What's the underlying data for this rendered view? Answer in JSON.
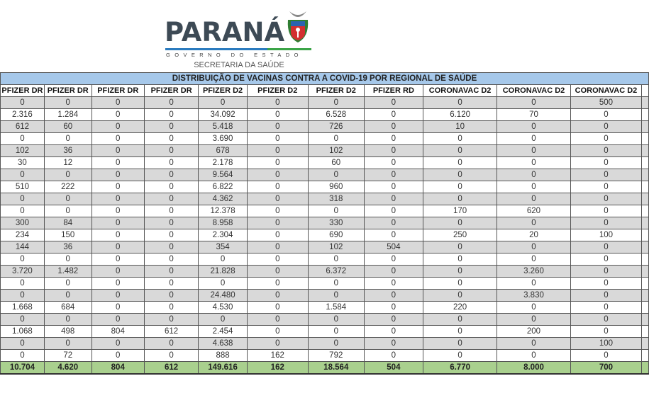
{
  "logo": {
    "name": "PARANÁ",
    "subtitle": "GOVERNO DO ESTADO",
    "department": "SECRETARIA DA SAÚDE"
  },
  "table": {
    "title": "DISTRIBUIÇÃO DE VACINAS CONTRA A COVID-19 POR REGIONAL DE SAÚDE",
    "headers": [
      "PFIZER DR",
      "PFIZER DR",
      "PFIZER DR",
      "PFIZER DR",
      "PFIZER D2",
      "PFIZER D2",
      "PFIZER D2",
      "PFIZER RD",
      "CORONAVAC D2",
      "CORONAVAC D2",
      "CORONAVAC D2"
    ],
    "rows": [
      [
        "0",
        "0",
        "0",
        "0",
        "0",
        "0",
        "0",
        "0",
        "0",
        "0",
        "500"
      ],
      [
        "2.316",
        "1.284",
        "0",
        "0",
        "34.092",
        "0",
        "6.528",
        "0",
        "6.120",
        "70",
        "0"
      ],
      [
        "612",
        "60",
        "0",
        "0",
        "5.418",
        "0",
        "726",
        "0",
        "10",
        "0",
        "0"
      ],
      [
        "0",
        "0",
        "0",
        "0",
        "3.690",
        "0",
        "0",
        "0",
        "0",
        "0",
        "0"
      ],
      [
        "102",
        "36",
        "0",
        "0",
        "678",
        "0",
        "102",
        "0",
        "0",
        "0",
        "0"
      ],
      [
        "30",
        "12",
        "0",
        "0",
        "2.178",
        "0",
        "60",
        "0",
        "0",
        "0",
        "0"
      ],
      [
        "0",
        "0",
        "0",
        "0",
        "9.564",
        "0",
        "0",
        "0",
        "0",
        "0",
        "0"
      ],
      [
        "510",
        "222",
        "0",
        "0",
        "6.822",
        "0",
        "960",
        "0",
        "0",
        "0",
        "0"
      ],
      [
        "0",
        "0",
        "0",
        "0",
        "4.362",
        "0",
        "318",
        "0",
        "0",
        "0",
        "0"
      ],
      [
        "0",
        "0",
        "0",
        "0",
        "12.378",
        "0",
        "0",
        "0",
        "170",
        "620",
        "0"
      ],
      [
        "300",
        "84",
        "0",
        "0",
        "8.958",
        "0",
        "330",
        "0",
        "0",
        "0",
        "0"
      ],
      [
        "234",
        "150",
        "0",
        "0",
        "2.304",
        "0",
        "690",
        "0",
        "250",
        "20",
        "100"
      ],
      [
        "144",
        "36",
        "0",
        "0",
        "354",
        "0",
        "102",
        "504",
        "0",
        "0",
        "0"
      ],
      [
        "0",
        "0",
        "0",
        "0",
        "0",
        "0",
        "0",
        "0",
        "0",
        "0",
        "0"
      ],
      [
        "3.720",
        "1.482",
        "0",
        "0",
        "21.828",
        "0",
        "6.372",
        "0",
        "0",
        "3.260",
        "0"
      ],
      [
        "0",
        "0",
        "0",
        "0",
        "0",
        "0",
        "0",
        "0",
        "0",
        "0",
        "0"
      ],
      [
        "0",
        "0",
        "0",
        "0",
        "24.480",
        "0",
        "0",
        "0",
        "0",
        "3.830",
        "0"
      ],
      [
        "1.668",
        "684",
        "0",
        "0",
        "4.530",
        "0",
        "1.584",
        "0",
        "220",
        "0",
        "0"
      ],
      [
        "0",
        "0",
        "0",
        "0",
        "0",
        "0",
        "0",
        "0",
        "0",
        "0",
        "0"
      ],
      [
        "1.068",
        "498",
        "804",
        "612",
        "2.454",
        "0",
        "0",
        "0",
        "0",
        "200",
        "0"
      ],
      [
        "0",
        "0",
        "0",
        "0",
        "4.638",
        "0",
        "0",
        "0",
        "0",
        "0",
        "100"
      ],
      [
        "0",
        "72",
        "0",
        "0",
        "888",
        "162",
        "792",
        "0",
        "0",
        "0",
        "0"
      ]
    ],
    "totals": [
      "10.704",
      "4.620",
      "804",
      "612",
      "149.616",
      "162",
      "18.564",
      "504",
      "6.770",
      "8.000",
      "700"
    ]
  }
}
